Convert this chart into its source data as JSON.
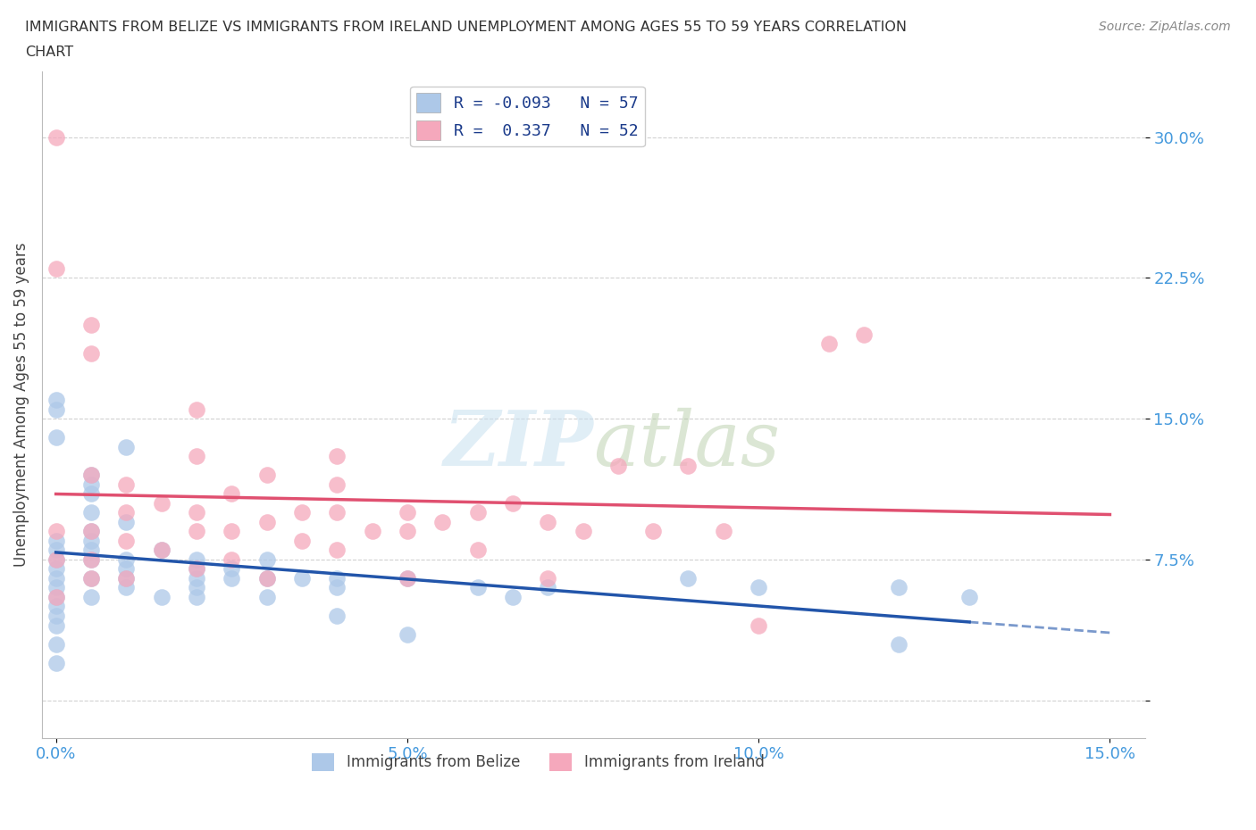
{
  "title_line1": "IMMIGRANTS FROM BELIZE VS IMMIGRANTS FROM IRELAND UNEMPLOYMENT AMONG AGES 55 TO 59 YEARS CORRELATION",
  "title_line2": "CHART",
  "source": "Source: ZipAtlas.com",
  "ylabel": "Unemployment Among Ages 55 to 59 years",
  "xlim": [
    -0.002,
    0.155
  ],
  "ylim": [
    -0.02,
    0.335
  ],
  "xticks": [
    0.0,
    0.05,
    0.1,
    0.15
  ],
  "xtick_labels": [
    "0.0%",
    "5.0%",
    "10.0%",
    "15.0%"
  ],
  "yticks": [
    0.0,
    0.075,
    0.15,
    0.225,
    0.3
  ],
  "ytick_labels": [
    "",
    "7.5%",
    "15.0%",
    "22.5%",
    "30.0%"
  ],
  "grid_color": "#cccccc",
  "background_color": "#ffffff",
  "belize_color": "#adc8e8",
  "ireland_color": "#f5a8bc",
  "belize_line_color": "#2255aa",
  "ireland_line_color": "#e05070",
  "belize_R": -0.093,
  "belize_N": 57,
  "ireland_R": 0.337,
  "ireland_N": 52,
  "legend_color": "#1a3a8a",
  "ytick_color": "#4499dd",
  "xtick_color": "#4499dd",
  "belize_x": [
    0.0,
    0.0,
    0.0,
    0.0,
    0.0,
    0.0,
    0.0,
    0.0,
    0.0,
    0.0,
    0.0,
    0.0,
    0.0,
    0.0,
    0.0,
    0.005,
    0.005,
    0.005,
    0.005,
    0.005,
    0.005,
    0.005,
    0.005,
    0.005,
    0.005,
    0.01,
    0.01,
    0.01,
    0.01,
    0.01,
    0.01,
    0.015,
    0.015,
    0.02,
    0.02,
    0.02,
    0.02,
    0.02,
    0.025,
    0.025,
    0.03,
    0.03,
    0.03,
    0.035,
    0.04,
    0.04,
    0.04,
    0.05,
    0.05,
    0.06,
    0.065,
    0.07,
    0.09,
    0.1,
    0.12,
    0.12,
    0.13
  ],
  "belize_y": [
    0.16,
    0.155,
    0.14,
    0.085,
    0.08,
    0.075,
    0.07,
    0.065,
    0.06,
    0.055,
    0.05,
    0.045,
    0.04,
    0.03,
    0.02,
    0.12,
    0.115,
    0.11,
    0.1,
    0.09,
    0.085,
    0.08,
    0.075,
    0.065,
    0.055,
    0.135,
    0.095,
    0.075,
    0.07,
    0.065,
    0.06,
    0.08,
    0.055,
    0.075,
    0.07,
    0.065,
    0.06,
    0.055,
    0.07,
    0.065,
    0.075,
    0.065,
    0.055,
    0.065,
    0.065,
    0.06,
    0.045,
    0.065,
    0.035,
    0.06,
    0.055,
    0.06,
    0.065,
    0.06,
    0.06,
    0.03,
    0.055
  ],
  "ireland_x": [
    0.0,
    0.0,
    0.0,
    0.0,
    0.0,
    0.005,
    0.005,
    0.005,
    0.005,
    0.005,
    0.005,
    0.01,
    0.01,
    0.01,
    0.01,
    0.015,
    0.015,
    0.02,
    0.02,
    0.02,
    0.02,
    0.02,
    0.025,
    0.025,
    0.025,
    0.03,
    0.03,
    0.03,
    0.035,
    0.035,
    0.04,
    0.04,
    0.04,
    0.04,
    0.045,
    0.05,
    0.05,
    0.05,
    0.055,
    0.06,
    0.06,
    0.065,
    0.07,
    0.07,
    0.075,
    0.08,
    0.085,
    0.09,
    0.095,
    0.1,
    0.11,
    0.115
  ],
  "ireland_y": [
    0.3,
    0.23,
    0.09,
    0.075,
    0.055,
    0.2,
    0.185,
    0.12,
    0.09,
    0.075,
    0.065,
    0.115,
    0.1,
    0.085,
    0.065,
    0.105,
    0.08,
    0.155,
    0.13,
    0.1,
    0.09,
    0.07,
    0.11,
    0.09,
    0.075,
    0.12,
    0.095,
    0.065,
    0.1,
    0.085,
    0.13,
    0.115,
    0.1,
    0.08,
    0.09,
    0.1,
    0.09,
    0.065,
    0.095,
    0.1,
    0.08,
    0.105,
    0.095,
    0.065,
    0.09,
    0.125,
    0.09,
    0.125,
    0.09,
    0.04,
    0.19,
    0.195
  ]
}
